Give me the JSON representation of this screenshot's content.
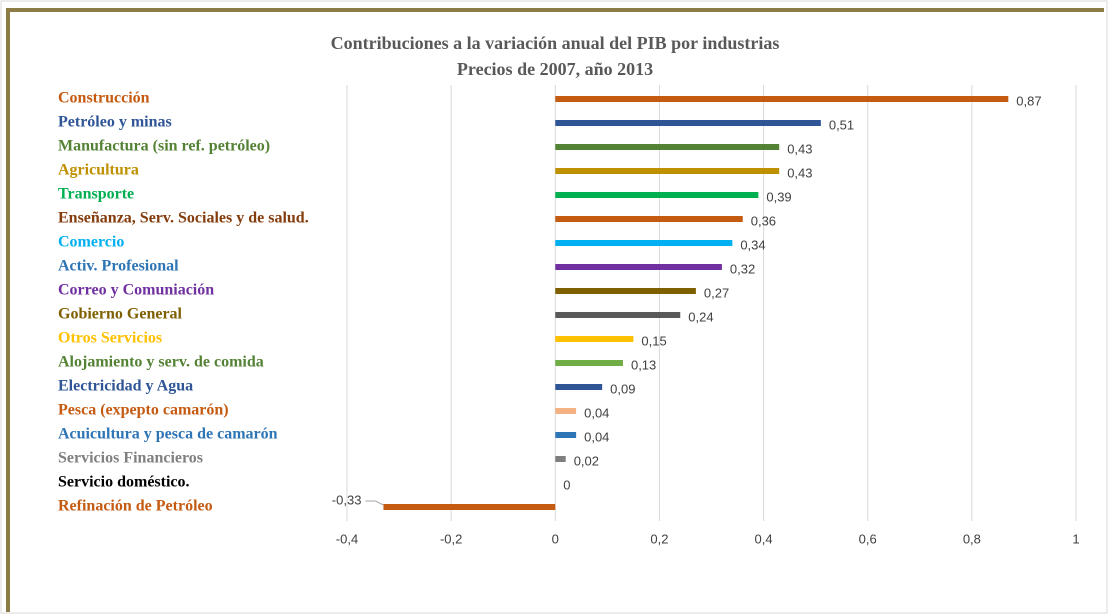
{
  "chart_data": {
    "type": "bar",
    "orientation": "horizontal",
    "title": "Contribuciones a la variación anual del PIB por industrias",
    "subtitle": "Precios de 2007, año 2013",
    "categories": [
      "Construcción",
      "Petróleo y minas",
      "Manufactura (sin ref. petróleo)",
      "Agricultura",
      "Transporte",
      "Enseñanza, Serv. Sociales y de salud.",
      "Comercio",
      "Activ. Profesional",
      "Correo y Comuniación",
      "Gobierno General",
      "Otros Servicios",
      "Alojamiento y serv. de comida",
      "Electricidad y Agua",
      "Pesca (expepto camarón)",
      "Acuicultura y pesca de camarón",
      "Servicios Financieros",
      "Servicio doméstico.",
      "Refinación de Petróleo"
    ],
    "values": [
      0.87,
      0.51,
      0.43,
      0.43,
      0.39,
      0.36,
      0.34,
      0.32,
      0.27,
      0.24,
      0.15,
      0.13,
      0.09,
      0.04,
      0.04,
      0.02,
      0,
      -0.33
    ],
    "value_labels": [
      "0,87",
      "0,51",
      "0,43",
      "0,43",
      "0,39",
      "0,36",
      "0,34",
      "0,32",
      "0,27",
      "0,24",
      "0,15",
      "0,13",
      "0,09",
      "0,04",
      "0,04",
      "0,02",
      "0",
      "-0,33"
    ],
    "colors": [
      "#c55a11",
      "#2f5597",
      "#548235",
      "#bf9000",
      "#00b050",
      "#c55a11",
      "#00b0f0",
      "#7030a0",
      "#7f6000",
      "#595959",
      "#ffc000",
      "#70ad47",
      "#2f5597",
      "#f4b183",
      "#2e75b6",
      "#7f7f7f",
      "#000000",
      "#c55a11"
    ],
    "label_colors": [
      "#c55a11",
      "#2f5597",
      "#548235",
      "#bf9000",
      "#00b050",
      "#843c0c",
      "#00b0f0",
      "#2e75b6",
      "#7030a0",
      "#7f6000",
      "#ffc000",
      "#548235",
      "#2f5597",
      "#c55a11",
      "#2e75b6",
      "#7f7f7f",
      "#000000",
      "#c55a11"
    ],
    "xlim": [
      -0.4,
      1
    ],
    "xticks": [
      {
        "value": -0.4,
        "label": "-0,4"
      },
      {
        "value": -0.2,
        "label": "-0,2"
      },
      0,
      {
        "value": 0.2,
        "label": "0,2"
      },
      {
        "value": 0.4,
        "label": "0,4"
      },
      {
        "value": 0.6,
        "label": "0,6"
      },
      {
        "value": 0.8,
        "label": "0,8"
      },
      1
    ],
    "grid": true
  }
}
